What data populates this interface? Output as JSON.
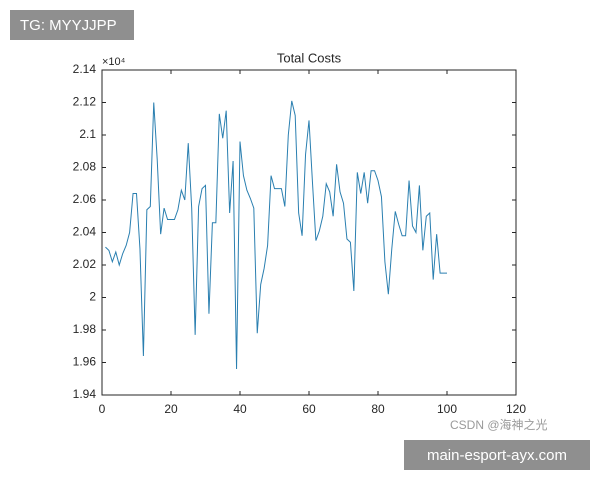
{
  "chart_data": {
    "type": "line",
    "title": "Total Costs",
    "y_multiplier": "×10⁴",
    "x": [
      1,
      2,
      3,
      4,
      5,
      6,
      7,
      8,
      9,
      10,
      11,
      12,
      13,
      14,
      15,
      16,
      17,
      18,
      19,
      20,
      21,
      22,
      23,
      24,
      25,
      26,
      27,
      28,
      29,
      30,
      31,
      32,
      33,
      34,
      35,
      36,
      37,
      38,
      39,
      40,
      41,
      42,
      43,
      44,
      45,
      46,
      47,
      48,
      49,
      50,
      51,
      52,
      53,
      54,
      55,
      56,
      57,
      58,
      59,
      60,
      61,
      62,
      63,
      64,
      65,
      66,
      67,
      68,
      69,
      70,
      71,
      72,
      73,
      74,
      75,
      76,
      77,
      78,
      79,
      80,
      81,
      82,
      83,
      84,
      85,
      86,
      87,
      88,
      89,
      90,
      91,
      92,
      93,
      94,
      95,
      96,
      97,
      98,
      99,
      100
    ],
    "series": [
      {
        "color": "#2a7fb0",
        "values": [
          2.031,
          2.029,
          2.022,
          2.028,
          2.02,
          2.027,
          2.032,
          2.04,
          2.064,
          2.064,
          2.03,
          1.964,
          2.054,
          2.056,
          2.12,
          2.085,
          2.039,
          2.055,
          2.048,
          2.048,
          2.048,
          2.054,
          2.066,
          2.06,
          2.095,
          2.055,
          1.977,
          2.056,
          2.067,
          2.069,
          1.99,
          2.046,
          2.046,
          2.113,
          2.098,
          2.115,
          2.052,
          2.084,
          1.956,
          2.096,
          2.075,
          2.066,
          2.061,
          2.055,
          1.978,
          2.008,
          2.018,
          2.032,
          2.075,
          2.067,
          2.067,
          2.067,
          2.056,
          2.1,
          2.121,
          2.112,
          2.052,
          2.038,
          2.088,
          2.109,
          2.071,
          2.035,
          2.041,
          2.05,
          2.07,
          2.065,
          2.05,
          2.082,
          2.065,
          2.058,
          2.036,
          2.034,
          2.004,
          2.077,
          2.064,
          2.077,
          2.058,
          2.078,
          2.078,
          2.072,
          2.062,
          2.022,
          2.002,
          2.03,
          2.053,
          2.045,
          2.038,
          2.038,
          2.072,
          2.044,
          2.04,
          2.069,
          2.029,
          2.05,
          2.052,
          2.011,
          2.039,
          2.015,
          2.015,
          2.015
        ]
      }
    ],
    "xlim": [
      0,
      120
    ],
    "xticks": [
      0,
      20,
      40,
      60,
      80,
      100,
      120
    ],
    "ylim": [
      1.94,
      2.14
    ],
    "yticks": [
      1.94,
      1.96,
      1.98,
      2,
      2.02,
      2.04,
      2.06,
      2.08,
      2.1,
      2.12,
      2.14
    ],
    "grid": false
  },
  "watermarks": {
    "top_left": "TG: MYYJJPP",
    "csdn": "CSDN @海神之光",
    "bottom_right": "main-esport-ayx.com"
  }
}
